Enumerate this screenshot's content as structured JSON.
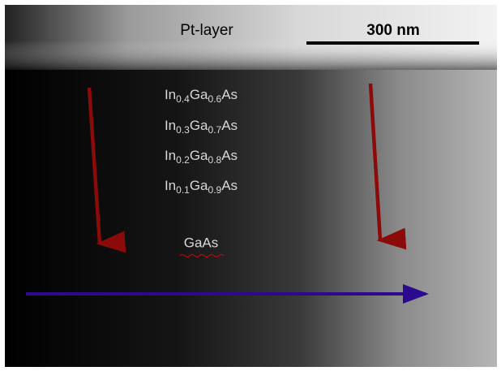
{
  "pt_label": "Pt-layer",
  "scale_label": "300 nm",
  "layers": [
    [
      "In",
      "0.4",
      "Ga",
      "0.6",
      "As"
    ],
    [
      "In",
      "0.3",
      "Ga",
      "0.7",
      "As"
    ],
    [
      "In",
      "0.2",
      "Ga",
      "0.8",
      "As"
    ],
    [
      "In",
      "0.1",
      "Ga",
      "0.9",
      "As"
    ]
  ],
  "substrate_label": "GaAs"
}
